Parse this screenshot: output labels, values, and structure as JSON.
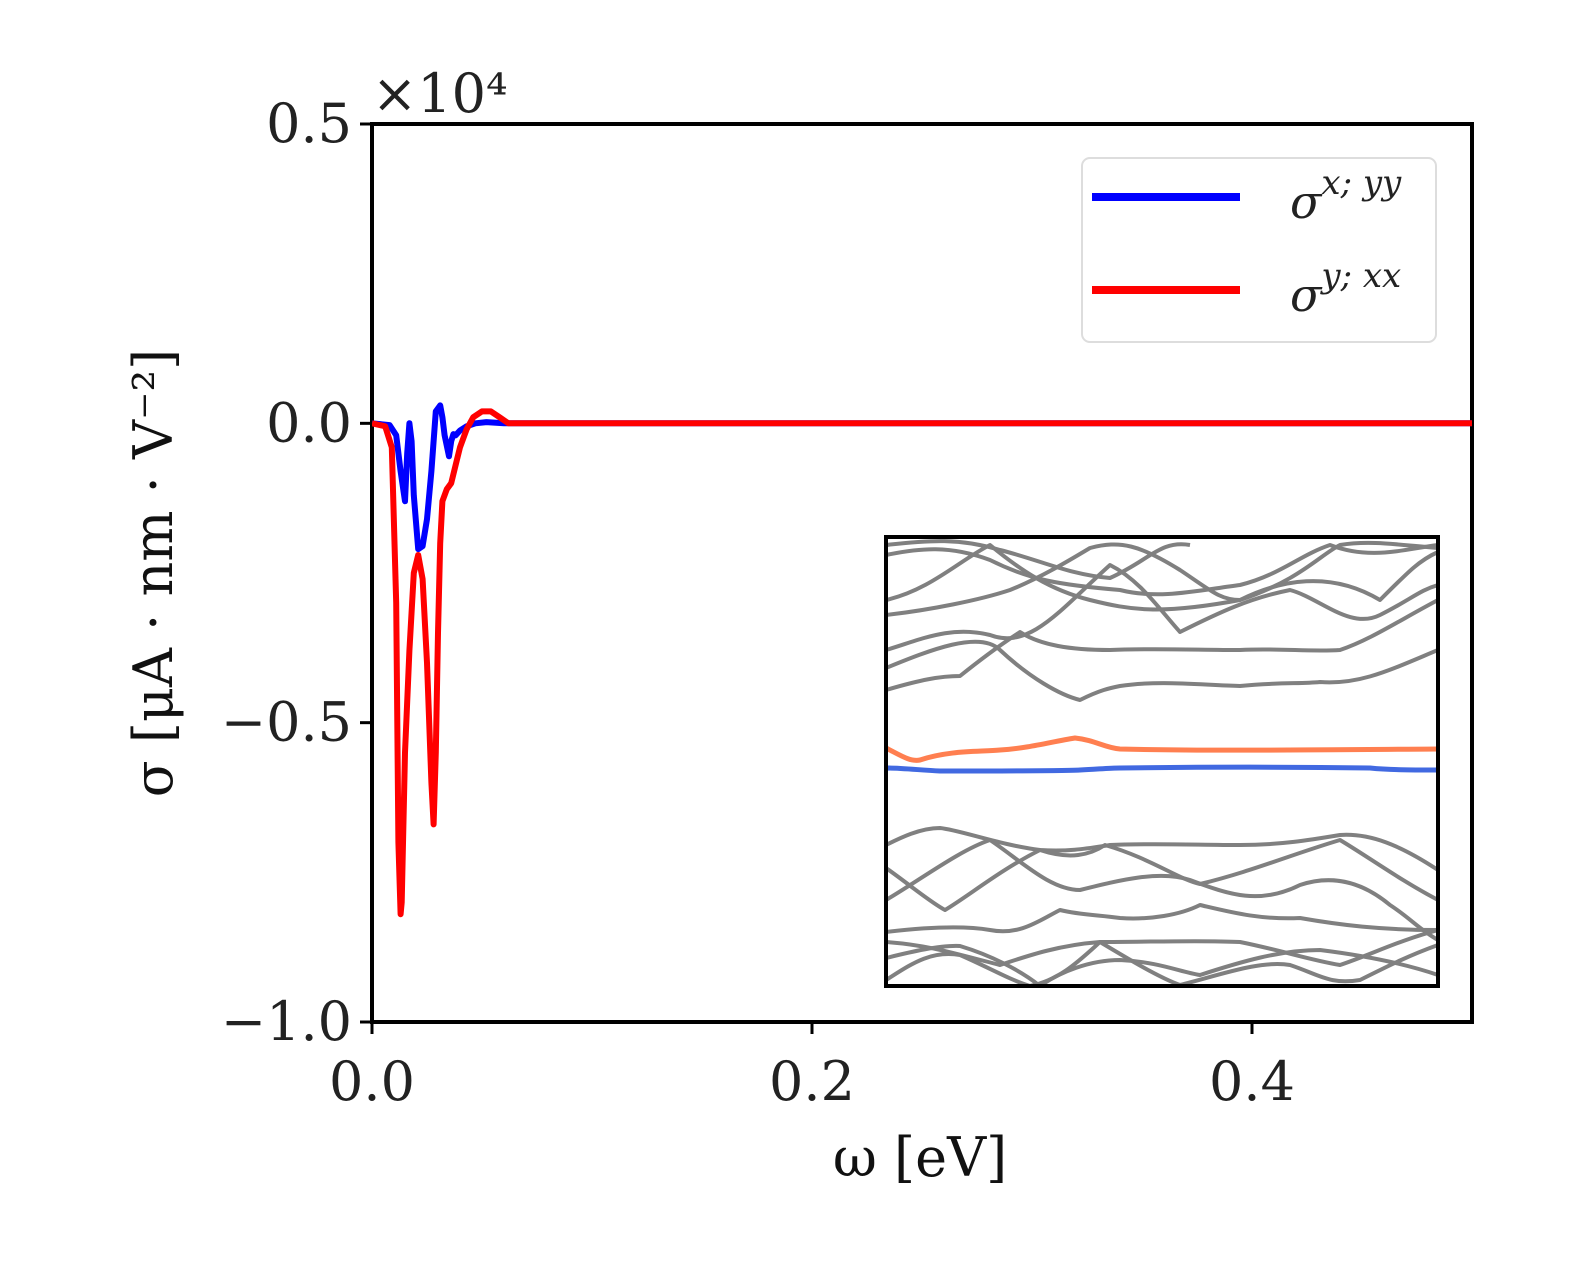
{
  "chart_data": {
    "type": "line",
    "title": "",
    "xlabel": "ω [eV]",
    "ylabel": "σ [μA · nm · V⁻²]",
    "xlim": [
      0.0,
      0.5
    ],
    "ylim": [
      -1.0,
      0.5
    ],
    "y_multiplier": "×10⁴",
    "xticks": [
      0.0,
      0.2,
      0.4
    ],
    "xtick_labels": [
      "0.0",
      "0.2",
      "0.4"
    ],
    "yticks": [
      -1.0,
      -0.5,
      0.0,
      0.5
    ],
    "ytick_labels": [
      "−1.0",
      "−0.5",
      "0.0",
      "0.5"
    ],
    "grid": false,
    "legend_position": "top-right",
    "series": [
      {
        "name": "σ^{x;yy}",
        "legend_base": "σ",
        "legend_sup": "x; yy",
        "color": "#0000ff",
        "x": [
          0.0,
          0.008,
          0.011,
          0.013,
          0.015,
          0.016,
          0.017,
          0.018,
          0.019,
          0.021,
          0.023,
          0.025,
          0.027,
          0.029,
          0.031,
          0.032,
          0.033,
          0.035,
          0.036,
          0.037,
          0.038,
          0.04,
          0.043,
          0.047,
          0.052,
          0.06,
          0.07,
          0.1,
          0.2,
          0.3,
          0.4,
          0.5
        ],
        "values": [
          0.0,
          -0.003,
          -0.02,
          -0.08,
          -0.13,
          -0.05,
          0.0,
          -0.03,
          -0.12,
          -0.21,
          -0.205,
          -0.16,
          -0.08,
          0.02,
          0.03,
          0.01,
          -0.02,
          -0.055,
          -0.03,
          -0.018,
          -0.02,
          -0.012,
          -0.005,
          0.0,
          0.002,
          0.0,
          0.0,
          0.0,
          0.0,
          0.0,
          0.0,
          0.0
        ]
      },
      {
        "name": "σ^{y;xx}",
        "legend_base": "σ",
        "legend_sup": "y; xx",
        "color": "#ff0000",
        "x": [
          0.0,
          0.006,
          0.009,
          0.011,
          0.012,
          0.013,
          0.0135,
          0.015,
          0.017,
          0.019,
          0.021,
          0.023,
          0.025,
          0.027,
          0.028,
          0.029,
          0.03,
          0.031,
          0.032,
          0.034,
          0.036,
          0.038,
          0.04,
          0.043,
          0.046,
          0.05,
          0.054,
          0.058,
          0.062,
          0.07,
          0.1,
          0.2,
          0.3,
          0.4,
          0.5
        ],
        "values": [
          0.0,
          -0.005,
          -0.04,
          -0.3,
          -0.7,
          -0.82,
          -0.8,
          -0.55,
          -0.38,
          -0.25,
          -0.22,
          -0.26,
          -0.4,
          -0.6,
          -0.67,
          -0.55,
          -0.35,
          -0.2,
          -0.13,
          -0.11,
          -0.1,
          -0.07,
          -0.04,
          -0.01,
          0.01,
          0.02,
          0.02,
          0.01,
          0.0,
          0.0,
          0.0,
          0.0,
          0.0,
          0.0,
          0.0
        ]
      }
    ],
    "inset": {
      "type": "band-structure",
      "description_colors": {
        "bands": "#808080",
        "upper_highlight": "#ff7f50",
        "lower_highlight": "#4169e1"
      }
    }
  }
}
